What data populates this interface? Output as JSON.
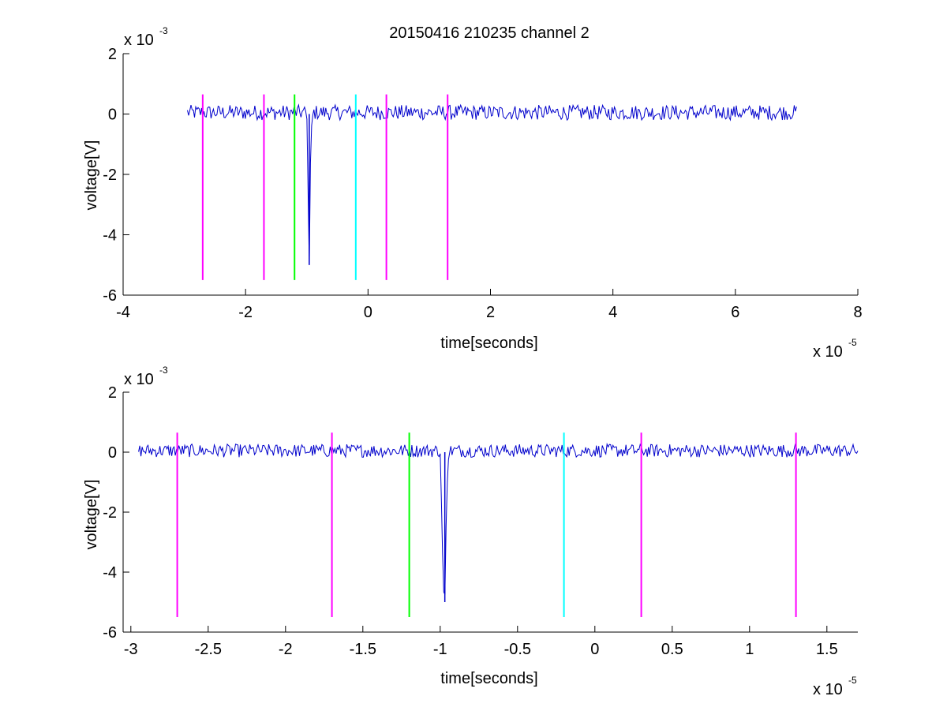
{
  "chart_data": [
    {
      "type": "line",
      "title": "20150416 210235 channel 2",
      "xlabel": "time[seconds]",
      "ylabel": "voltage[V]",
      "x_exponent": "x 10",
      "x_exponent_power": "-5",
      "y_exponent": "x 10",
      "y_exponent_power": "-3",
      "xlim": [
        -4,
        8
      ],
      "ylim": [
        -6,
        2
      ],
      "xticks": [
        -4,
        -2,
        0,
        2,
        4,
        6,
        8
      ],
      "xtick_labels": [
        "-4",
        "-2",
        "0",
        "2",
        "4",
        "6",
        "8"
      ],
      "yticks": [
        -6,
        -4,
        -2,
        0,
        2
      ],
      "ytick_labels": [
        "-6",
        "-4",
        "-2",
        "0",
        "2"
      ],
      "grid": false,
      "signal": {
        "color": "#0000cc",
        "x_start": -2.95,
        "x_end": 7.0,
        "baseline": 0.05,
        "noise_amplitude": 0.25,
        "pulse": {
          "x": [
            -1.0,
            -0.98,
            -0.96,
            -0.94,
            -0.92,
            -0.9
          ],
          "y": [
            0.0,
            -2.5,
            -5.0,
            -1.5,
            -0.3,
            0.0
          ]
        }
      },
      "markers": [
        {
          "x": -2.7,
          "y": [
            -5.5,
            0.65
          ],
          "color": "#ff00ff"
        },
        {
          "x": -1.7,
          "y": [
            -5.5,
            0.65
          ],
          "color": "#ff00ff"
        },
        {
          "x": -1.2,
          "y": [
            -5.5,
            0.65
          ],
          "color": "#00ff00"
        },
        {
          "x": -0.2,
          "y": [
            -5.5,
            0.65
          ],
          "color": "#00ffff"
        },
        {
          "x": 0.3,
          "y": [
            -5.5,
            0.65
          ],
          "color": "#ff00ff"
        },
        {
          "x": 1.3,
          "y": [
            -5.5,
            0.65
          ],
          "color": "#ff00ff"
        }
      ]
    },
    {
      "type": "line",
      "title": "",
      "xlabel": "time[seconds]",
      "ylabel": "voltage[V]",
      "x_exponent": "x 10",
      "x_exponent_power": "-5",
      "y_exponent": "x 10",
      "y_exponent_power": "-3",
      "xlim": [
        -3.05,
        1.7
      ],
      "ylim": [
        -6,
        2
      ],
      "xticks": [
        -3,
        -2.5,
        -2,
        -1.5,
        -1,
        -0.5,
        0,
        0.5,
        1,
        1.5
      ],
      "xtick_labels": [
        "-3",
        "-2.5",
        "-2",
        "-1.5",
        "-1",
        "-0.5",
        "0",
        "0.5",
        "1",
        "1.5"
      ],
      "yticks": [
        -6,
        -4,
        -2,
        0,
        2
      ],
      "ytick_labels": [
        "-6",
        "-4",
        "-2",
        "0",
        "2"
      ],
      "grid": false,
      "signal": {
        "color": "#0000cc",
        "x_start": -2.95,
        "x_end": 1.7,
        "baseline": 0.05,
        "noise_amplitude": 0.22,
        "pulse": {
          "x": [
            -1.0,
            -0.99,
            -0.98,
            -0.97,
            -0.96,
            -0.95,
            -0.94
          ],
          "y": [
            0.0,
            -2.0,
            -4.5,
            -5.0,
            -2.0,
            -0.4,
            0.0
          ]
        }
      },
      "markers": [
        {
          "x": -2.7,
          "y": [
            -5.5,
            0.65
          ],
          "color": "#ff00ff"
        },
        {
          "x": -1.7,
          "y": [
            -5.5,
            0.65
          ],
          "color": "#ff00ff"
        },
        {
          "x": -1.2,
          "y": [
            -5.5,
            0.65
          ],
          "color": "#00ff00"
        },
        {
          "x": -0.2,
          "y": [
            -5.5,
            0.65
          ],
          "color": "#00ffff"
        },
        {
          "x": 0.3,
          "y": [
            -5.5,
            0.65
          ],
          "color": "#ff00ff"
        },
        {
          "x": 1.3,
          "y": [
            -5.5,
            0.65
          ],
          "color": "#ff00ff"
        }
      ]
    }
  ]
}
